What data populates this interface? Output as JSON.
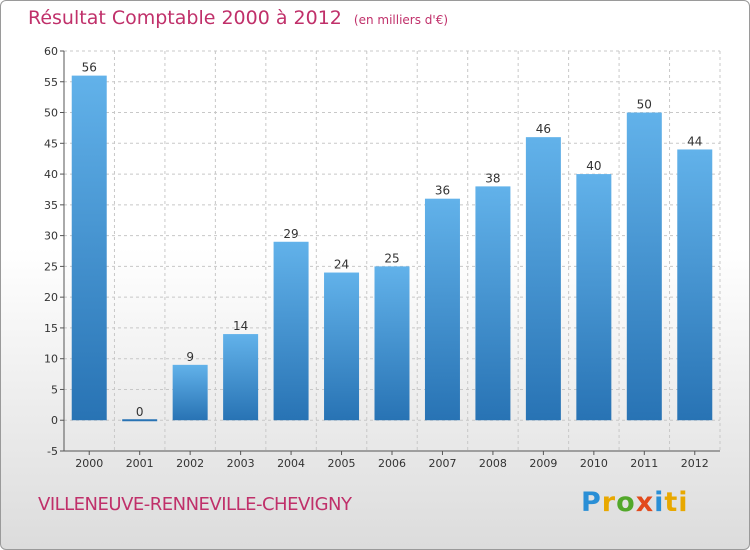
{
  "header": {
    "title": "Résultat Comptable 2000 à 2012",
    "unit": "(en milliers d'€)"
  },
  "footer": {
    "commune": "VILLENEUVE-RENNEVILLE-CHEVIGNY",
    "logo": [
      "P",
      "r",
      "o",
      "x",
      "i",
      "ti"
    ]
  },
  "colors": {
    "title": "#c0306a",
    "bar_light": "#62b2ea",
    "bar_dark": "#2873b4",
    "grid": "#c8c8c8"
  },
  "chart_data": {
    "type": "bar",
    "title": "Résultat Comptable 2000 à 2012",
    "subtitle": "(en milliers d'€)",
    "xlabel": "",
    "ylabel": "",
    "categories": [
      "2000",
      "2001",
      "2002",
      "2003",
      "2004",
      "2005",
      "2006",
      "2007",
      "2008",
      "2009",
      "2010",
      "2011",
      "2012"
    ],
    "values": [
      56,
      0,
      9,
      14,
      29,
      24,
      25,
      36,
      38,
      46,
      40,
      50,
      44
    ],
    "ylim": [
      -5,
      60
    ],
    "yticks": [
      -5,
      0,
      5,
      10,
      15,
      20,
      25,
      30,
      35,
      40,
      45,
      50,
      55,
      60
    ],
    "grid": true,
    "legend": "none"
  }
}
